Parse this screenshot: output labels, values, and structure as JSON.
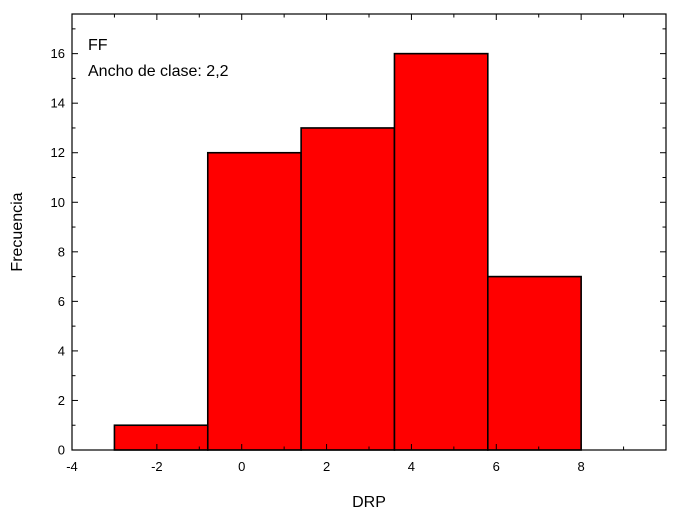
{
  "chart_data": {
    "type": "bar",
    "subtype": "histogram",
    "bins": [
      {
        "x_start": -3.0,
        "x_end": -0.8,
        "value": 1
      },
      {
        "x_start": -0.8,
        "x_end": 1.4,
        "value": 12
      },
      {
        "x_start": 1.4,
        "x_end": 3.6,
        "value": 13
      },
      {
        "x_start": 3.6,
        "x_end": 5.8,
        "value": 16
      },
      {
        "x_start": 5.8,
        "x_end": 8.0,
        "value": 7
      }
    ],
    "xlabel": "DRP",
    "ylabel": "Frecuencia",
    "annotations": [
      "FF",
      "Ancho de clase: 2,2"
    ],
    "xlim": [
      -4,
      10
    ],
    "ylim": [
      0,
      17.6
    ],
    "xticks": [
      -4,
      -2,
      0,
      2,
      4,
      6,
      8
    ],
    "yticks": [
      0,
      2,
      4,
      6,
      8,
      10,
      12,
      14,
      16
    ],
    "bar_color": "#ff0000",
    "bar_edge_color": "#000000",
    "grid": false,
    "mirror_ticks": true
  }
}
